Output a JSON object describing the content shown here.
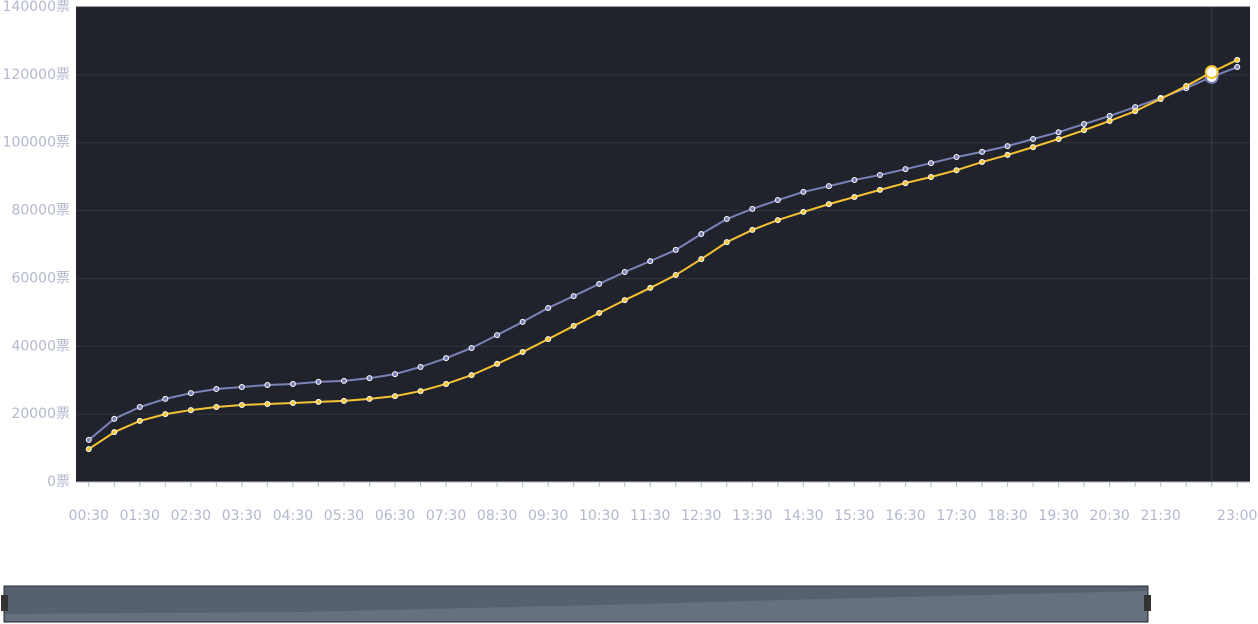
{
  "chart_data": {
    "type": "line",
    "categories": [
      "00:30",
      null,
      "01:30",
      null,
      "02:30",
      null,
      "03:30",
      null,
      "04:30",
      null,
      "05:30",
      null,
      "06:30",
      null,
      "07:30",
      null,
      "08:30",
      null,
      "09:30",
      null,
      "10:30",
      null,
      "11:30",
      null,
      "12:30",
      null,
      "13:30",
      null,
      "14:30",
      null,
      "15:30",
      null,
      "16:30",
      null,
      "17:30",
      null,
      "18:30",
      null,
      "19:30",
      null,
      "20:30",
      null,
      "21:30",
      null,
      null,
      "23:00"
    ],
    "series": [
      {
        "color": "#7b82b8",
        "values": [
          12400,
          18600,
          22100,
          24500,
          26200,
          27400,
          28000,
          28600,
          28900,
          29500,
          29800,
          30600,
          31800,
          33900,
          36500,
          39500,
          43300,
          47200,
          51300,
          54800,
          58400,
          61900,
          65100,
          68400,
          73100,
          77500,
          80500,
          83100,
          85500,
          87200,
          89000,
          90500,
          92200,
          94000,
          95800,
          97300,
          99000,
          101100,
          103100,
          105500,
          107900,
          110500,
          113200,
          116100,
          119400,
          122300
        ]
      },
      {
        "color": "#f5c232",
        "values": [
          9700,
          14700,
          18000,
          20000,
          21200,
          22100,
          22700,
          23000,
          23300,
          23600,
          23900,
          24500,
          25300,
          26800,
          28900,
          31500,
          34800,
          38300,
          42100,
          46000,
          49800,
          53600,
          57200,
          61000,
          65700,
          70700,
          74300,
          77200,
          79600,
          81900,
          84000,
          86100,
          88100,
          89900,
          91900,
          94300,
          96400,
          98700,
          101100,
          103700,
          106400,
          109300,
          112900,
          116700,
          120800,
          124400
        ]
      }
    ],
    "ylim": [
      0,
      140000
    ],
    "yticks": [
      {
        "value": 0,
        "label": "0票"
      },
      {
        "value": 20000,
        "label": "20000票"
      },
      {
        "value": 40000,
        "label": "40000票"
      },
      {
        "value": 60000,
        "label": "60000票"
      },
      {
        "value": 80000,
        "label": "80000票"
      },
      {
        "value": 100000,
        "label": "100000票"
      },
      {
        "value": 120000,
        "label": "120000票"
      },
      {
        "value": 140000,
        "label": "140000票"
      }
    ],
    "grid": true
  }
}
